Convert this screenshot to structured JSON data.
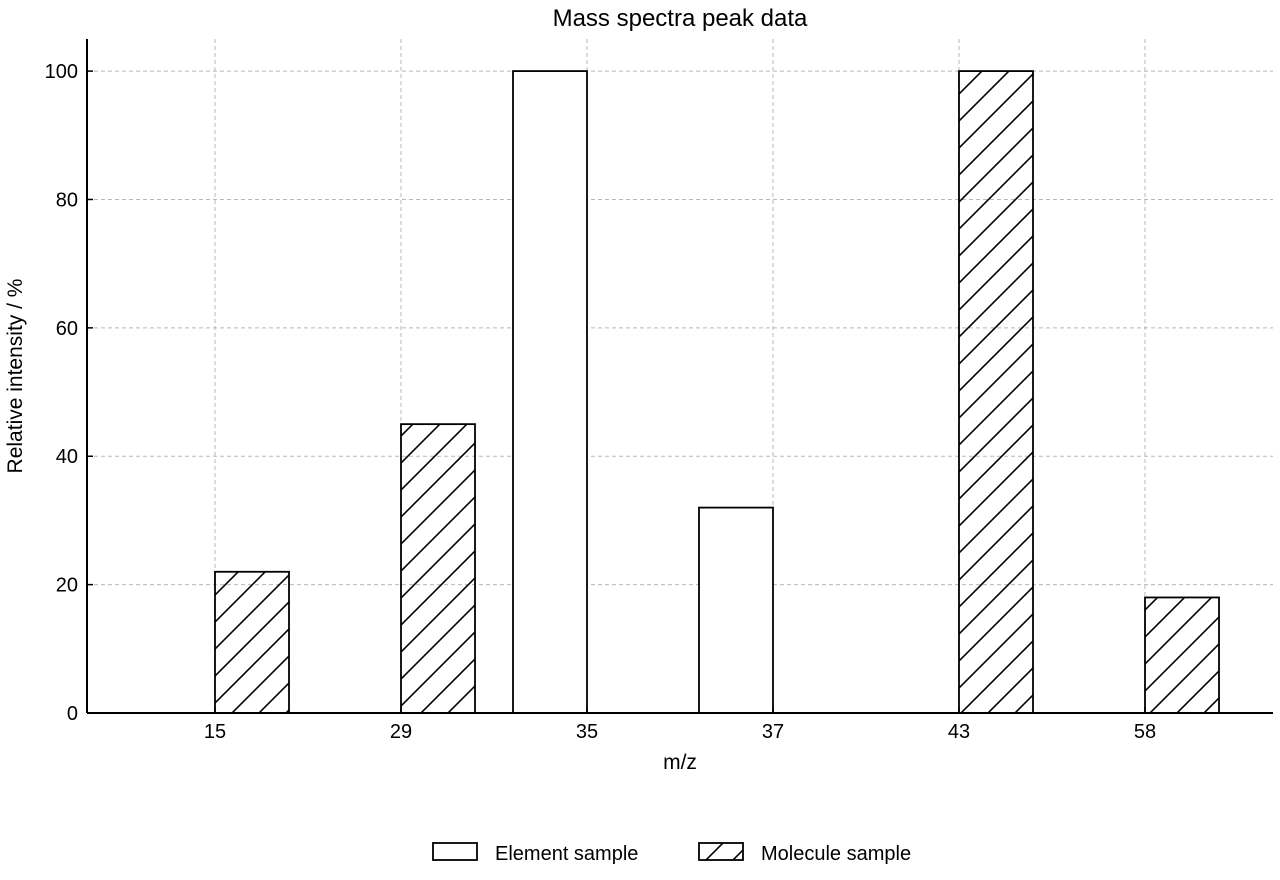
{
  "chart_data": {
    "type": "bar",
    "title": "Mass spectra peak data",
    "xlabel": "m/z",
    "ylabel": "Relative intensity / %",
    "categories": [
      "15",
      "29",
      "35",
      "37",
      "43",
      "58"
    ],
    "series": [
      {
        "name": "Element sample",
        "values": [
          0,
          0,
          100,
          32,
          0,
          0
        ],
        "pattern": "none"
      },
      {
        "name": "Molecule sample",
        "values": [
          22,
          45,
          0,
          0,
          100,
          18
        ],
        "pattern": "diagonal-hatch"
      }
    ],
    "ylim": [
      0,
      105
    ],
    "yticks": [
      0,
      20,
      40,
      60,
      80,
      100
    ],
    "grid": true,
    "legend_position": "bottom-center",
    "colors": {
      "bar_fill": "#ffffff",
      "bar_edge": "#000000",
      "grid": "#b8b8b8"
    }
  }
}
